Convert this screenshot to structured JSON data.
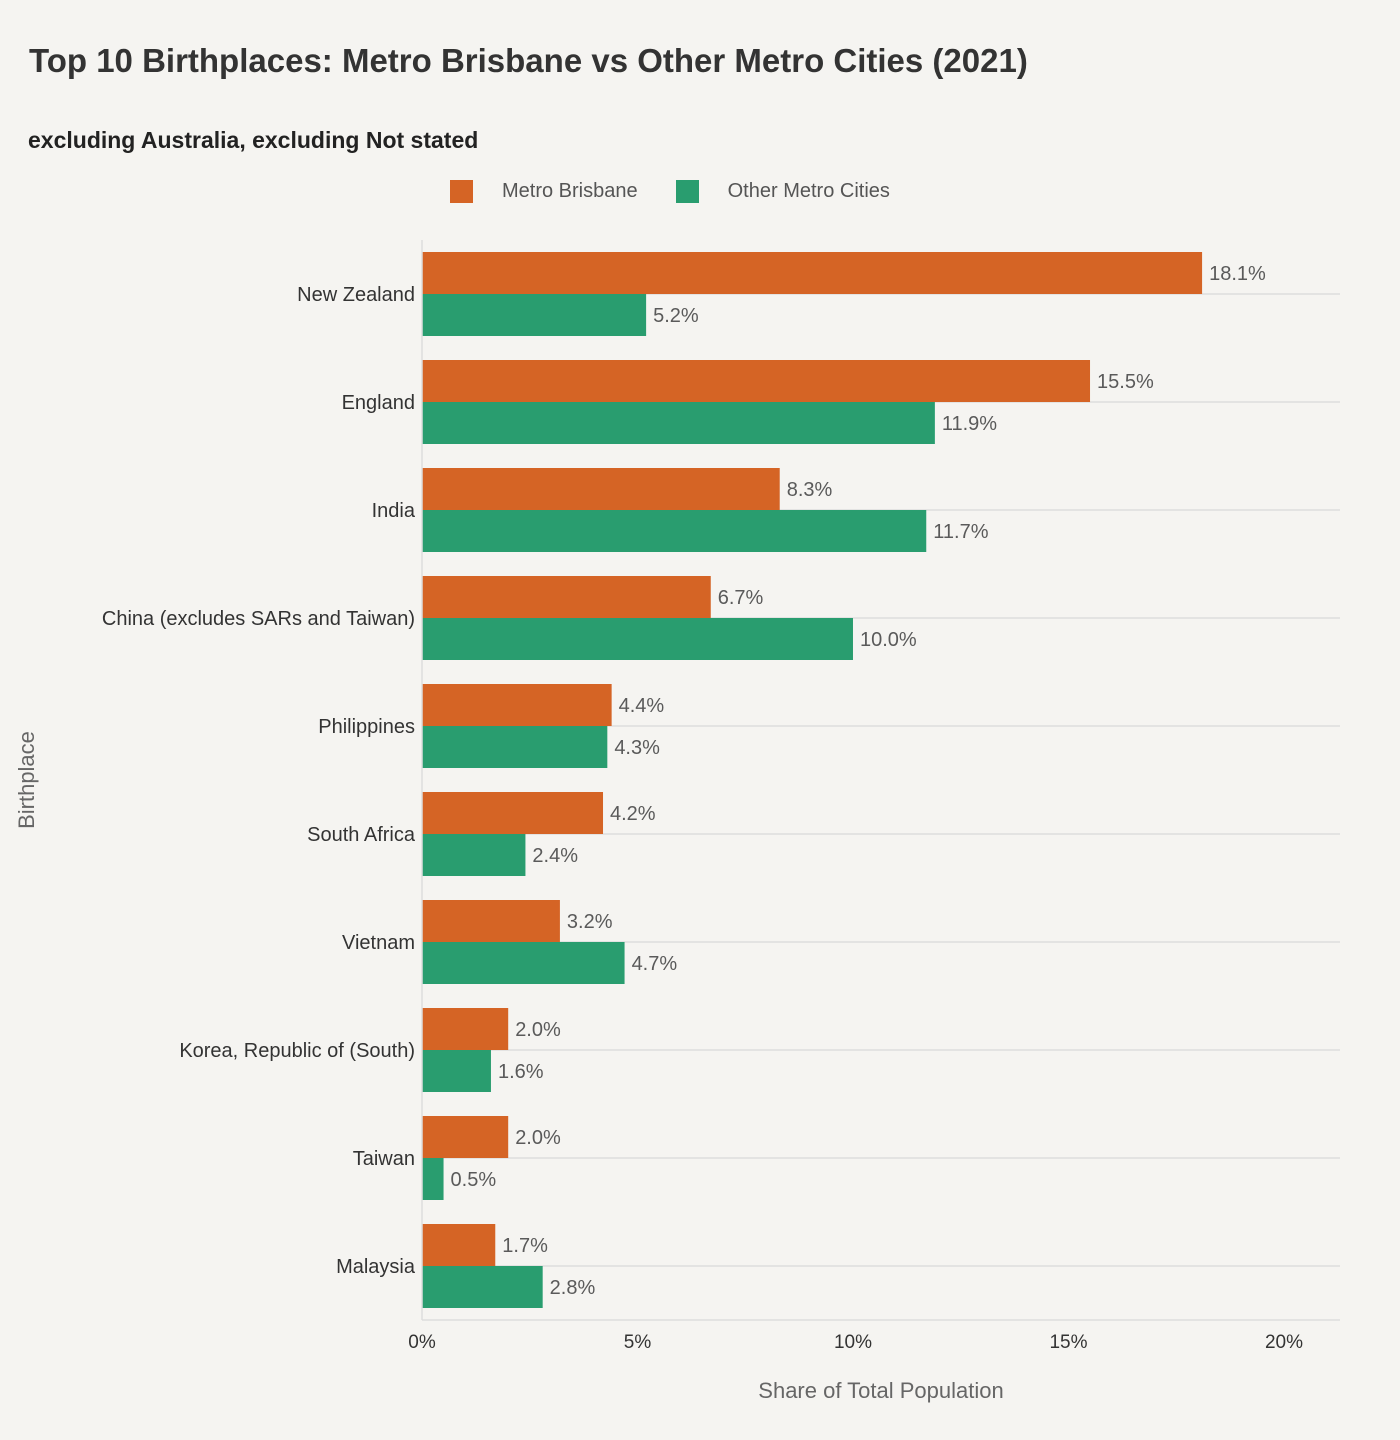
{
  "title": "Top 10 Birthplaces: Metro Brisbane vs Other Metro Cities (2021)",
  "subtitle": "excluding Australia, excluding Not stated",
  "legend": {
    "items": [
      {
        "label": "Metro Brisbane",
        "color": "#d56425"
      },
      {
        "label": "Other Metro Cities",
        "color": "#299d6f"
      }
    ]
  },
  "chart_data": {
    "type": "bar",
    "orientation": "horizontal",
    "title": "Top 10 Birthplaces: Metro Brisbane vs Other Metro Cities (2021)",
    "subtitle": "excluding Australia, excluding Not stated",
    "xlabel": "Share of Total Population",
    "ylabel": "Birthplace",
    "xlim": [
      0,
      21.3
    ],
    "xticks": [
      0,
      5,
      10,
      15,
      20
    ],
    "xtick_labels": [
      "0%",
      "5%",
      "10%",
      "15%",
      "20%"
    ],
    "grid": "horizontal gridlines at category centers",
    "legend_position": "top-center",
    "categories": [
      "New Zealand",
      "England",
      "India",
      "China (excludes SARs and Taiwan)",
      "Philippines",
      "South Africa",
      "Vietnam",
      "Korea, Republic of (South)",
      "Taiwan",
      "Malaysia"
    ],
    "series": [
      {
        "name": "Metro Brisbane",
        "color": "#d56425",
        "values": [
          18.1,
          15.5,
          8.3,
          6.7,
          4.4,
          4.2,
          3.2,
          2.0,
          2.0,
          1.7
        ],
        "labels": [
          "18.1%",
          "15.5%",
          "8.3%",
          "6.7%",
          "4.4%",
          "4.2%",
          "3.2%",
          "2.0%",
          "2.0%",
          "1.7%"
        ]
      },
      {
        "name": "Other Metro Cities",
        "color": "#299d6f",
        "values": [
          5.2,
          11.9,
          11.7,
          10.0,
          4.3,
          2.4,
          4.7,
          1.6,
          0.5,
          2.8
        ],
        "labels": [
          "5.2%",
          "11.9%",
          "11.7%",
          "10.0%",
          "4.3%",
          "2.4%",
          "4.7%",
          "1.6%",
          "0.5%",
          "2.8%"
        ]
      }
    ]
  }
}
